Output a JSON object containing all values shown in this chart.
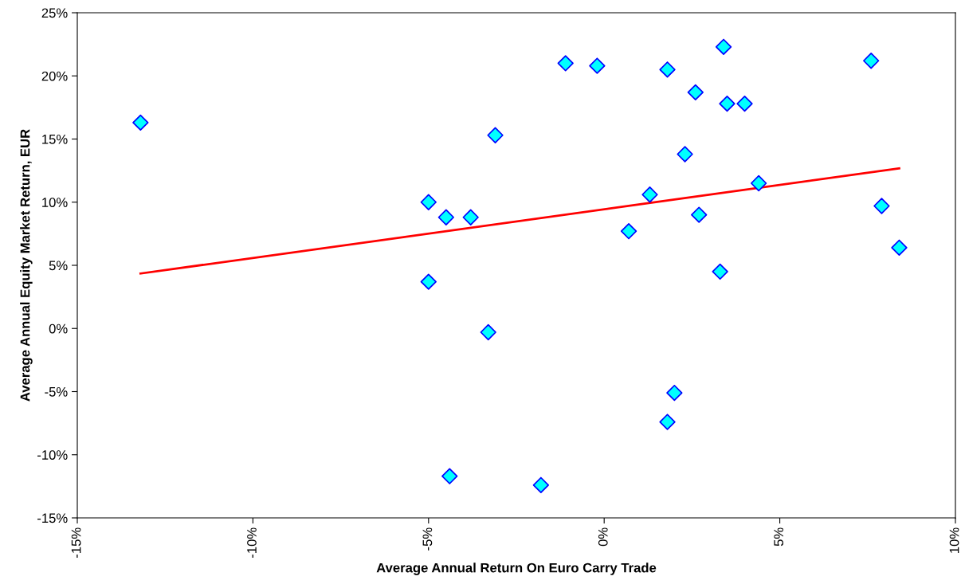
{
  "chart_data": {
    "type": "scatter",
    "xlabel": "Average Annual Return On Euro Carry Trade",
    "ylabel": "Average Annual Equity Market Return, EUR",
    "xlim": [
      -15,
      10
    ],
    "ylim": [
      -15,
      25
    ],
    "xticks": [
      {
        "value": -15,
        "label": "-15%"
      },
      {
        "value": -10,
        "label": "-10%"
      },
      {
        "value": -5,
        "label": "-5%"
      },
      {
        "value": 0,
        "label": "0%"
      },
      {
        "value": 5,
        "label": "5%"
      },
      {
        "value": 10,
        "label": "10%"
      }
    ],
    "yticks": [
      {
        "value": -15,
        "label": "-15%"
      },
      {
        "value": -10,
        "label": "-10%"
      },
      {
        "value": -5,
        "label": "-5%"
      },
      {
        "value": 0,
        "label": "0%"
      },
      {
        "value": 5,
        "label": "5%"
      },
      {
        "value": 10,
        "label": "10%"
      },
      {
        "value": 15,
        "label": "15%"
      },
      {
        "value": 20,
        "label": "20%"
      },
      {
        "value": 25,
        "label": "25%"
      }
    ],
    "series": [
      {
        "color": "#00ffff",
        "marker": "diamond",
        "x": [
          -13.2,
          -5.0,
          -4.5,
          -3.8,
          -3.1,
          -5.0,
          -3.3,
          -4.4,
          -1.8,
          -1.1,
          -0.2,
          0.7,
          1.3,
          1.8,
          1.8,
          2.0,
          2.3,
          2.6,
          2.7,
          3.3,
          3.4,
          3.5,
          4.0,
          4.4,
          7.6,
          7.9,
          8.4
        ],
        "values": [
          16.3,
          10.0,
          8.8,
          8.8,
          15.3,
          3.7,
          -0.3,
          -11.7,
          -12.4,
          21.0,
          20.8,
          7.7,
          10.6,
          20.5,
          -7.4,
          -5.1,
          13.8,
          18.7,
          9.0,
          4.5,
          22.3,
          17.8,
          17.8,
          11.5,
          21.2,
          9.7,
          6.4
        ]
      },
      {
        "type": "line",
        "color": "#ff0000",
        "marker": "none",
        "line_style": "solid",
        "x": [
          -13.2,
          8.4
        ],
        "values": [
          4.35,
          12.68
        ]
      }
    ]
  }
}
